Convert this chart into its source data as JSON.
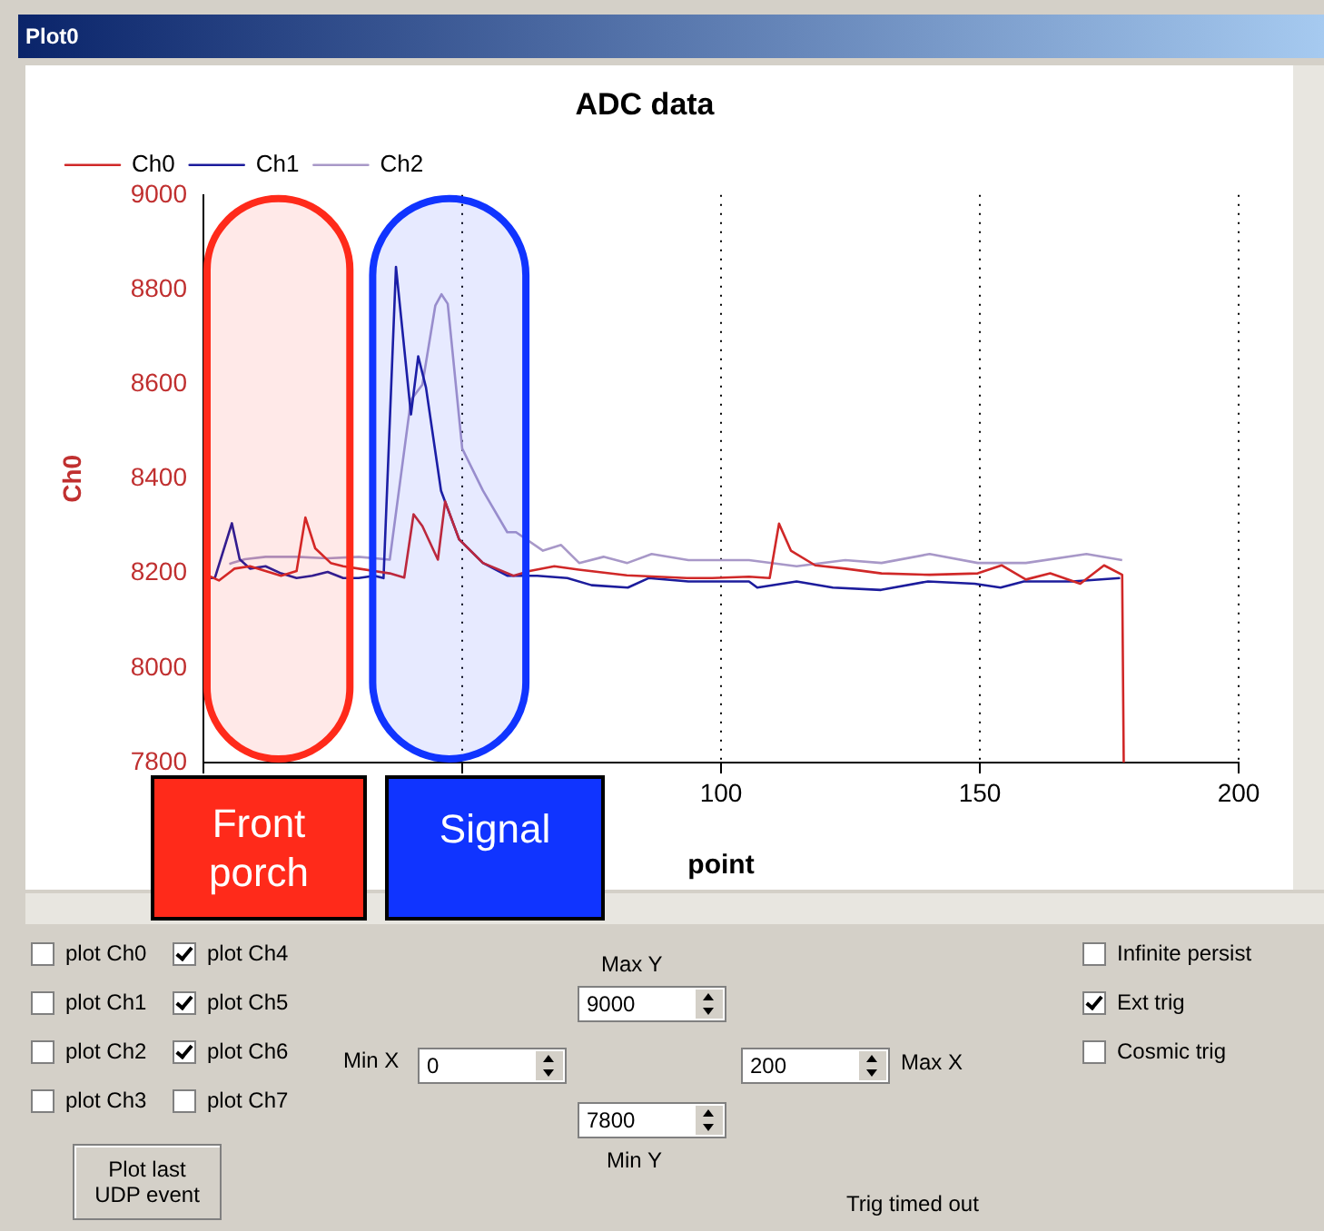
{
  "chart_data": {
    "type": "line",
    "title": "ADC data",
    "xlabel": "point",
    "ylabel": "Ch0",
    "legend": "top",
    "grid": "x",
    "xlim": [
      0,
      200
    ],
    "xticks": [
      {
        "value": 0,
        "label": null
      },
      {
        "value": 50,
        "label": null
      },
      100,
      150,
      200
    ],
    "ylim": [
      7800,
      9000
    ],
    "yticks": [
      7800,
      8000,
      8200,
      8400,
      8600,
      8800,
      9000
    ],
    "series": [
      {
        "name": "Ch0",
        "color": "#d02828",
        "x": [
          0,
          3,
          6,
          9,
          12,
          15,
          18,
          19.7,
          21.6,
          24.6,
          27,
          30,
          33,
          36,
          38.8,
          40.6,
          42.3,
          45.3,
          46.7,
          49.4,
          54,
          59.9,
          63,
          67.8,
          72.5,
          81.8,
          93.4,
          98.3,
          105.4,
          109.4,
          111.2,
          113.5,
          118.2,
          124,
          131,
          140.3,
          149.6,
          154.2,
          158.9,
          163.6,
          169.4,
          174,
          177.5,
          177.8
        ],
        "values": [
          8200,
          8185,
          8210,
          8215,
          8205,
          8195,
          8205,
          8318,
          8253,
          8222,
          8215,
          8210,
          8205,
          8200,
          8191,
          8325,
          8300,
          8229,
          8352,
          8272,
          8222,
          8195,
          8205,
          8215,
          8208,
          8196,
          8190,
          8190,
          8193,
          8190,
          8305,
          8248,
          8217,
          8210,
          8200,
          8197,
          8200,
          8217,
          8187,
          8200,
          8178,
          8217,
          8197,
          7800
        ]
      },
      {
        "name": "Ch1",
        "color": "#1c1c9c",
        "x": [
          0,
          2.2,
          5.5,
          7,
          9,
          12,
          15,
          18,
          21,
          24,
          27,
          30,
          33,
          34.8,
          37.2,
          40.1,
          41.5,
          43,
          45.9,
          49.4,
          54,
          58.7,
          64.5,
          70.3,
          75,
          82,
          86,
          93.7,
          105.4,
          107,
          114.6,
          121.6,
          130.9,
          140,
          149,
          154,
          158.5,
          167.8,
          177.1
        ],
        "values": [
          8190,
          8190,
          8306,
          8230,
          8210,
          8215,
          8200,
          8190,
          8195,
          8203,
          8190,
          8190,
          8195,
          8190,
          8848,
          8536,
          8659,
          8593,
          8375,
          8272,
          8222,
          8195,
          8195,
          8190,
          8175,
          8170,
          8190,
          8183,
          8183,
          8170,
          8183,
          8170,
          8165,
          8183,
          8178,
          8170,
          8183,
          8183,
          8190
        ]
      },
      {
        "name": "Ch2",
        "color": "#a898c8",
        "x": [
          5,
          8,
          12,
          18,
          24,
          30,
          36,
          40.1,
          42.3,
          44.8,
          46,
          47.2,
          50,
          54,
          58.7,
          60.4,
          65.6,
          69.1,
          72.6,
          77.3,
          81.9,
          86.6,
          93.7,
          105.4,
          114.6,
          124,
          131,
          140.3,
          149.6,
          158.9,
          170.6,
          177.5
        ],
        "values": [
          8220,
          8230,
          8235,
          8235,
          8232,
          8235,
          8229,
          8567,
          8599,
          8766,
          8790,
          8770,
          8464,
          8375,
          8287,
          8287,
          8248,
          8260,
          8222,
          8235,
          8222,
          8241,
          8228,
          8228,
          8215,
          8228,
          8222,
          8241,
          8222,
          8222,
          8241,
          8228
        ]
      }
    ],
    "bands": [
      {
        "axis": "x",
        "from": 0,
        "to": 29,
        "label": "Front porch",
        "color": "#ff2a1a"
      },
      {
        "axis": "x",
        "from": 32,
        "to": 63,
        "label": "Signal",
        "color": "#1034ff"
      }
    ],
    "annotations": [
      "Plot0",
      "plot Ch0",
      "plot Ch1",
      "plot Ch2",
      "plot Ch3",
      "plot Ch4",
      "plot Ch5",
      "plot Ch6",
      "plot Ch7",
      "Max Y",
      "9000",
      "Min X",
      "0",
      "200",
      "Max X",
      "7800",
      "Min Y",
      "Plot last UDP event",
      "Infinite persist",
      "Ext trig",
      "Cosmic trig",
      "Trig timed out"
    ]
  }
}
